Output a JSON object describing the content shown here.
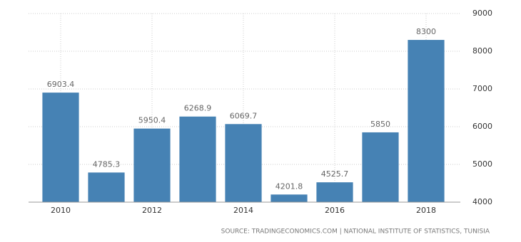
{
  "chart_data": {
    "type": "bar",
    "source": "SOURCE: TRADINGECONOMICS.COM | NATIONAL INSTITUTE OF STATISTICS, TUNISIA",
    "categories": [
      "2010",
      null,
      "2012",
      null,
      "2014",
      null,
      "2016",
      null,
      "2018"
    ],
    "values": [
      6903.4,
      4785.3,
      5950.4,
      6268.9,
      6069.7,
      4201.8,
      4525.7,
      5850,
      8300
    ],
    "color": "#4682b4",
    "ylim": [
      4000,
      9000
    ],
    "yticks": [
      4000,
      5000,
      6000,
      7000,
      8000,
      9000
    ],
    "grid": true
  }
}
